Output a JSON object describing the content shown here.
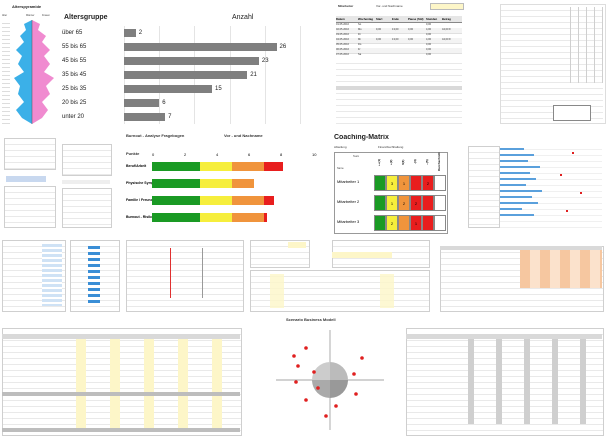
{
  "age_chart": {
    "title": "Altersgruppe",
    "value_header": "Anzahl",
    "rows": [
      {
        "label": "über 65",
        "value": 2
      },
      {
        "label": "55 bis 65",
        "value": 26
      },
      {
        "label": "45 bis 55",
        "value": 23
      },
      {
        "label": "35 bis 45",
        "value": 21
      },
      {
        "label": "25 bis 35",
        "value": 15
      },
      {
        "label": "20 bis 25",
        "value": 6
      },
      {
        "label": "unter 20",
        "value": 7
      }
    ]
  },
  "pyramid": {
    "title": "Alterspyramide",
    "col_left": "Alter",
    "col_m": "Männer",
    "col_f": "Frauen"
  },
  "timesheet": {
    "title_left": "Mitarbeiter",
    "title_mid": "Vor- und Nachname",
    "headers": [
      "Datum",
      "Wochentag",
      "Start",
      "Ende",
      "Pause (Std)",
      "Stunden",
      "Betrag"
    ],
    "rows": [
      [
        "01.05.2016",
        "So",
        "",
        "",
        "",
        "0,00",
        ""
      ],
      [
        "02.05.2016",
        "Mo",
        "9,00",
        "13,00",
        "0,00",
        "4,00",
        "44,00 €"
      ],
      [
        "03.05.2016",
        "Di",
        "",
        "",
        "",
        "0,00",
        ""
      ],
      [
        "04.05.2016",
        "Mi",
        "9,00",
        "13,00",
        "0,00",
        "4,00",
        "44,00 €"
      ],
      [
        "05.05.2016",
        "Do",
        "",
        "",
        "",
        "0,00",
        ""
      ],
      [
        "06.05.2016",
        "Fr",
        "",
        "",
        "",
        "0,00",
        ""
      ],
      [
        "07.05.2016",
        "Sa",
        "",
        "",
        "",
        "0,00",
        ""
      ]
    ]
  },
  "burnout": {
    "title": "Burnout - Analyse Fragebogen",
    "name_header": "Vor - und Nachname",
    "col_header": "Punkte",
    "scale": [
      "0",
      "2",
      "4",
      "6",
      "8",
      "10"
    ],
    "rows": [
      {
        "label": "Beruf/Arbeit",
        "value": 8.2
      },
      {
        "label": "Physische Symptome",
        "value": 6.4
      },
      {
        "label": "Familie / Freunde/ Freizeit",
        "value": 7.6
      },
      {
        "label": "Burnout - Risiko",
        "value": 7.2
      }
    ]
  },
  "coaching": {
    "title": "Coaching-Matrix",
    "subtitle_left": "Abteilung",
    "subtitle_right": "Finanzbuchhaltung",
    "header_team": "Team",
    "header_name": "Name",
    "columns": [
      "++(1)",
      "+(2)",
      "0(3)",
      "-(4)",
      "--(5)",
      "Durchschnitt"
    ],
    "rows": [
      {
        "name": "Mitarbeiter 1",
        "cells": [
          "",
          "3",
          "1",
          "",
          "2",
          ""
        ]
      },
      {
        "name": "Mitarbeiter 2",
        "cells": [
          "",
          "1",
          "2",
          "2",
          "",
          ""
        ]
      },
      {
        "name": "Mitarbeiter 3",
        "cells": [
          "",
          "2",
          "",
          "1",
          "",
          ""
        ]
      }
    ]
  },
  "scatter": {
    "title": "Scenario Business Modell"
  },
  "colors": {
    "bar": "#7f7f7f",
    "green": "#1a9a24",
    "yellow": "#f6ee3c",
    "orange": "#f0943c",
    "red": "#e81e1e",
    "pink": "#f08bd0",
    "cyan": "#3bb0e8"
  }
}
